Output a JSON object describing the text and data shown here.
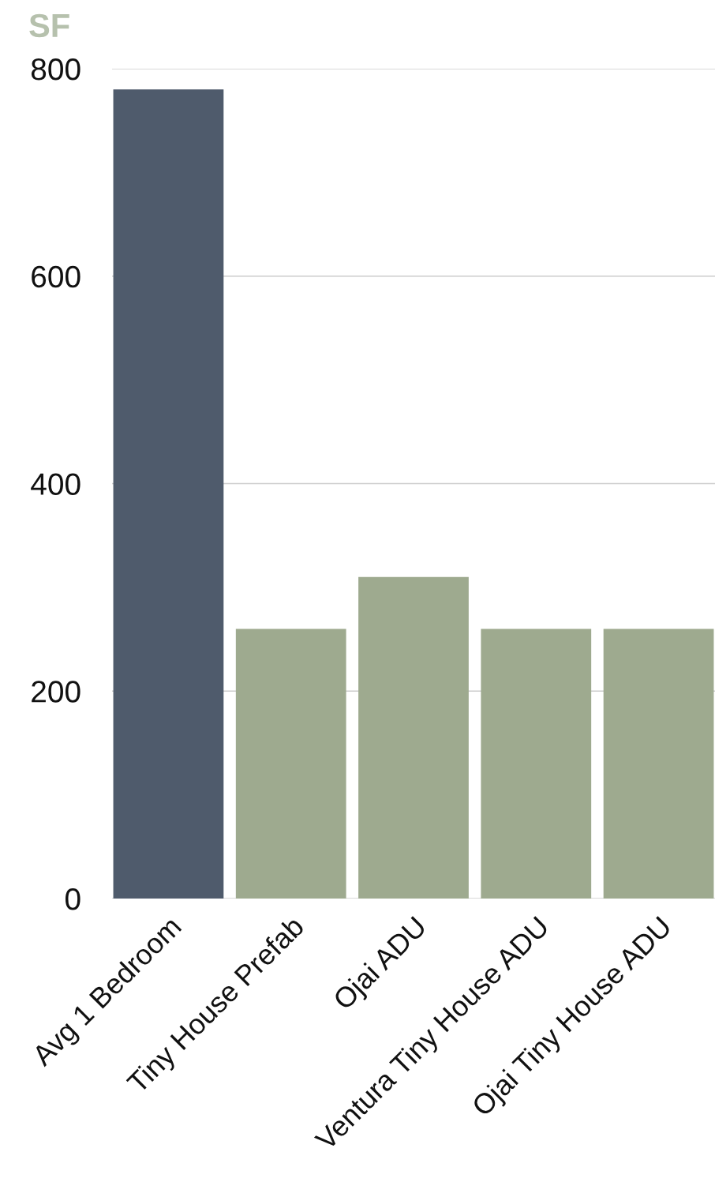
{
  "chart_data": {
    "type": "bar",
    "ylabel": "SF",
    "categories": [
      "Avg 1 Bedroom",
      "Tiny House Prefab",
      "Ojai ADU",
      "Ventura Tiny House ADU",
      "Ojai Tiny House ADU"
    ],
    "values": [
      780,
      260,
      310,
      260,
      260
    ],
    "colors": [
      "#4f5b6c",
      "#9eaa8f",
      "#9eaa8f",
      "#9eaa8f",
      "#9eaa8f"
    ],
    "ylim": [
      0,
      800
    ],
    "yticks": [
      0,
      200,
      400,
      600,
      800
    ],
    "grid": "y"
  }
}
